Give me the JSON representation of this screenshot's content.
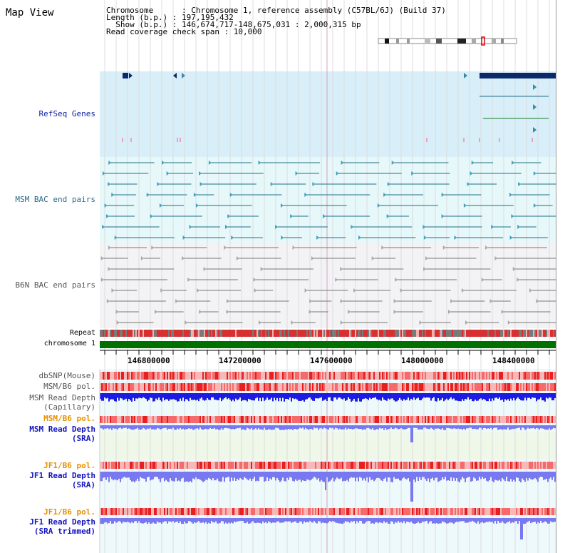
{
  "title": "Map View",
  "info": {
    "chromosome_row": "Chromosome      : Chromosome 1, reference assembly (C57BL/6J) (Build 37)",
    "length_row": "Length (b.p.) : 197,195,432",
    "show_row": "  Show (b.p.) : 146,674,717-148,675,031 : 2,000,315 bp",
    "coverage_row": "Read coverage check span : 10,000"
  },
  "tracks": {
    "refseq": "RefSeq Genes",
    "msm_bac": "MSM BAC end pairs",
    "b6n_bac": "B6N BAC end pairs",
    "repeat": "Repeat",
    "chromosome": "chromosome 1",
    "dbsnp": "dbSNP(Mouse)",
    "msm_b6_pol_1": "MSM/B6 pol.",
    "msm_read_depth_cap_1": "MSM Read Depth",
    "msm_read_depth_cap_2": "(Capillary)",
    "msm_b6_pol_2": "MSM/B6 pol.",
    "msm_read_depth_sra_1": "MSM Read Depth",
    "msm_read_depth_sra_2": "(SRA)",
    "jf1_b6_pol_1": "JF1/B6 pol.",
    "jf1_read_depth_sra_1": "JF1 Read Depth",
    "jf1_read_depth_sra_2": "(SRA)",
    "jf1_b6_pol_2": "JF1/B6 pol.",
    "jf1_read_depth_trim_1": "JF1 Read Depth",
    "jf1_read_depth_trim_2": "(SRA trimmed)"
  },
  "axis": {
    "ticks": [
      "146800000",
      "147200000",
      "147600000",
      "148000000",
      "148400000"
    ]
  },
  "colors": {
    "refseq_bg": "#d8eef8",
    "msm_bac_bg": "#e6f8fa",
    "b6n_bac_bg": "#f3f3f6",
    "chromosome_bar": "#007000",
    "gene_color": "#0b2a6a",
    "msm_feature": "#1e6e86",
    "b6n_feature": "#777777",
    "depth_capillary": "#1c1ce0",
    "depth_sra": "#7878f0",
    "polymorphism": "#ee3333"
  }
}
